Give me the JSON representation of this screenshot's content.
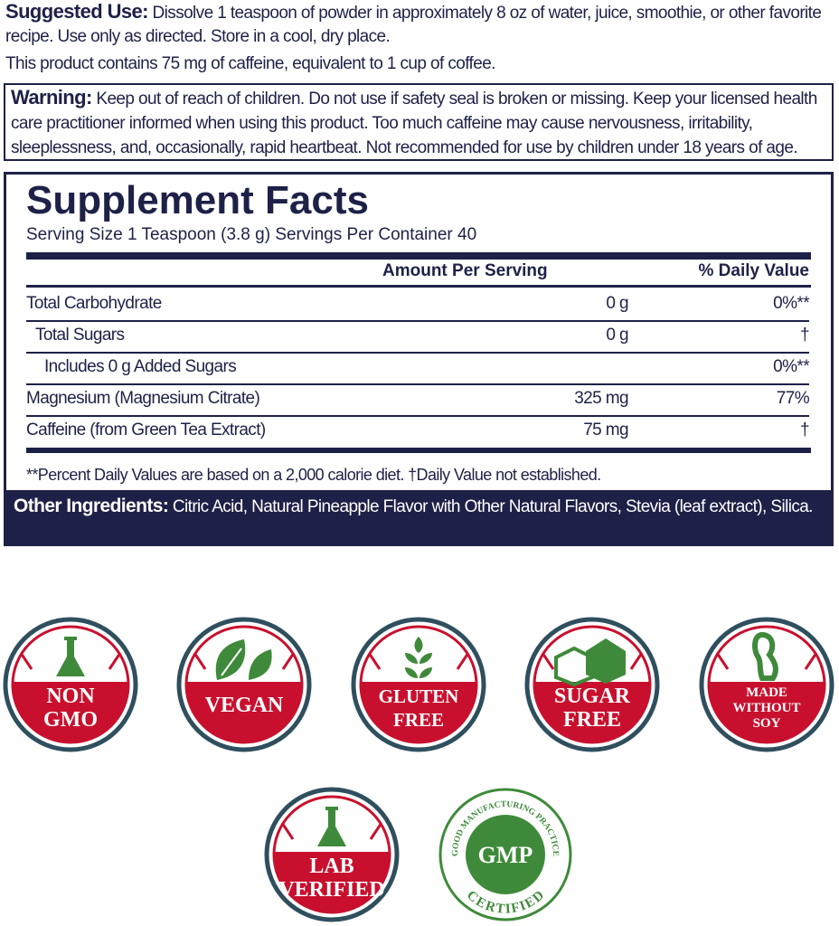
{
  "suggested_use": {
    "label": "Suggested Use:",
    "text": "Dissolve 1 teaspoon of powder in approximately 8 oz of water, juice, smoothie, or other favorite recipe. Use only as directed. Store in a cool, dry place."
  },
  "caffeine_note": "This product contains 75 mg of caffeine, equivalent to 1 cup of coffee.",
  "warning": {
    "label": "Warning:",
    "text": "Keep out of reach of children. Do not use if safety seal is broken or missing. Keep your licensed health care practitioner informed when using this product. Too much caffeine may cause nervousness, irritability, sleeplessness, and, occasionally, rapid heartbeat. Not recommended for use by children under 18 years of age."
  },
  "facts": {
    "title": "Supplement Facts",
    "serving": "Serving Size 1 Teaspoon (3.8 g)  Servings Per Container 40",
    "col_amount": "Amount Per Serving",
    "col_dv": "% Daily Value",
    "rows": [
      {
        "name": "Total Carbohydrate",
        "amount": "0 g",
        "dv": "0%**"
      },
      {
        "name": "Total Sugars",
        "amount": "0 g",
        "dv": "†"
      },
      {
        "name": "Includes 0 g Added Sugars",
        "amount": "",
        "dv": "0%**"
      },
      {
        "name": "Magnesium (Magnesium Citrate)",
        "amount": "325 mg",
        "dv": "77%"
      },
      {
        "name": "Caffeine (from Green Tea Extract)",
        "amount": "75 mg",
        "dv": "†"
      }
    ],
    "footnote": "**Percent Daily Values are based on a 2,000 calorie diet. †Daily Value not established.",
    "other_label": "Other Ingredients:",
    "other_text": "Citric Acid, Natural Pineapple Flavor with Other Natural Flavors, Stevia (leaf extract), Silica."
  },
  "badges": [
    {
      "icon": "flask-icon",
      "l1": "NON",
      "l2": "GMO",
      "l3": ""
    },
    {
      "icon": "leaf-icon",
      "l1": "VEGAN",
      "l2": "",
      "l3": ""
    },
    {
      "icon": "wheat-icon",
      "l1": "GLUTEN",
      "l2": "FREE",
      "l3": ""
    },
    {
      "icon": "sugar-cube-icon",
      "l1": "SUGAR",
      "l2": "FREE",
      "l3": ""
    },
    {
      "icon": "soybean-icon",
      "l1": "MADE",
      "l2": "WITHOUT",
      "l3": "SOY"
    },
    {
      "icon": "flask-icon",
      "l1": "LAB",
      "l2": "VERIFIED",
      "l3": ""
    }
  ],
  "gmp": {
    "center": "GMP",
    "top": "GOOD MANUFACTURING PRACTICE",
    "bottom": "CERTIFIED"
  },
  "colors": {
    "navy": "#1e2147",
    "red": "#c8102e",
    "green": "#3f8a3a",
    "ring": "#2f4f5e"
  }
}
